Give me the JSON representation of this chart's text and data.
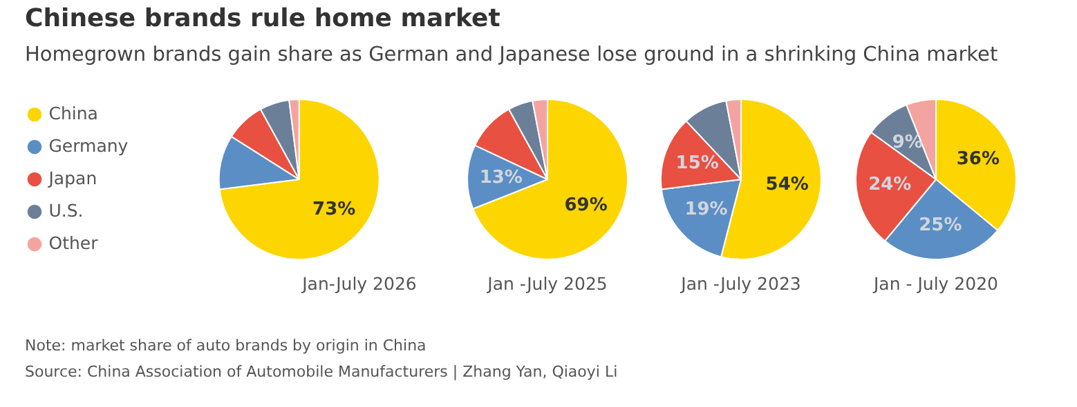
{
  "chart_data": {
    "type": "pie",
    "title": "Chinese brands rule home market",
    "subtitle": "Homegrown brands gain share as German and Japanese lose ground in a shrinking China market",
    "legend": "left",
    "categories": [
      "China",
      "Germany",
      "Japan",
      "U.S.",
      "Other"
    ],
    "colors": [
      "#fdd500",
      "#5b8ec4",
      "#e85041",
      "#6b7f99",
      "#f4a4a0"
    ],
    "series": [
      {
        "name": "Jan-July 2026",
        "values": [
          73,
          11,
          8,
          6,
          2
        ],
        "value_labels": [
          "73%",
          null,
          null,
          null,
          null
        ]
      },
      {
        "name": "Jan -July 2025",
        "values": [
          69,
          13,
          10,
          5,
          3
        ],
        "value_labels": [
          "69%",
          "13%",
          null,
          null,
          null
        ]
      },
      {
        "name": "Jan -July 2023",
        "values": [
          54,
          19,
          15,
          9,
          3
        ],
        "value_labels": [
          "54%",
          "19%",
          "15%",
          null,
          null
        ]
      },
      {
        "name": "Jan - July 2020",
        "values": [
          36,
          25,
          24,
          9,
          6
        ],
        "value_labels": [
          "36%",
          "25%",
          "24%",
          "9%",
          null
        ]
      }
    ],
    "annotations": [
      "Note: market share of auto brands by origin in China",
      "Source: China Association of Automobile Manufacturers | Zhang Yan, Qiaoyi Li"
    ]
  }
}
